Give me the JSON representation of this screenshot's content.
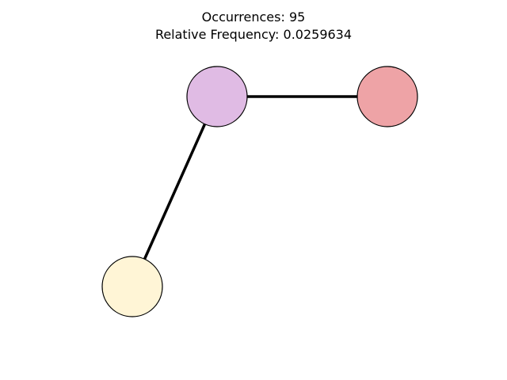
{
  "header": {
    "occurrences_label": "Occurrences: 95",
    "frequency_label": "Relative Frequency: 0.0259634"
  },
  "graph": {
    "nodes": [
      {
        "id": "node-purple",
        "fill": "#e0bbe4"
      },
      {
        "id": "node-red",
        "fill": "#eea3a6"
      },
      {
        "id": "node-yellow",
        "fill": "#fff5d6"
      }
    ],
    "edges": [
      {
        "from": "node-purple",
        "to": "node-red"
      },
      {
        "from": "node-purple",
        "to": "node-yellow"
      }
    ],
    "edge_color": "#000000",
    "node_outline": "#000000"
  }
}
